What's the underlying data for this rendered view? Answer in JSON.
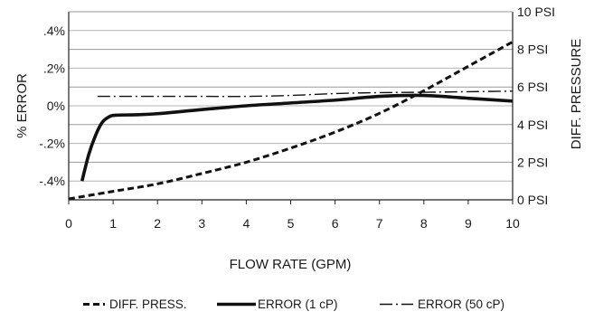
{
  "chart_data": {
    "type": "line",
    "xlabel": "FLOW RATE (GPM)",
    "ylabel_left": "% ERROR",
    "ylabel_right": "DIFF. PRESSURE",
    "xlim": [
      0,
      10
    ],
    "ylim_left": [
      -0.5,
      0.5
    ],
    "ylim_right": [
      0,
      10
    ],
    "x_ticks": [
      "0",
      "1",
      "2",
      "3",
      "4",
      "5",
      "6",
      "7",
      "8",
      "9",
      "10"
    ],
    "y_ticks_left": [
      {
        "value": 0.4,
        "label": ".4%"
      },
      {
        "value": 0.2,
        "label": ".2%"
      },
      {
        "value": 0.0,
        "label": "0%"
      },
      {
        "value": -0.2,
        "label": "-.2%"
      },
      {
        "value": -0.4,
        "label": "-.4%"
      }
    ],
    "y_ticks_right": [
      {
        "value": 10,
        "label": "10 PSI"
      },
      {
        "value": 8,
        "label": "8 PSI"
      },
      {
        "value": 6,
        "label": "6 PSI"
      },
      {
        "value": 4,
        "label": "4 PSI"
      },
      {
        "value": 2,
        "label": "2 PSI"
      },
      {
        "value": 0,
        "label": "0 PSI"
      }
    ],
    "grid": "horizontal",
    "legend_position": "bottom",
    "series": [
      {
        "name": "DIFF. PRESS.",
        "axis": "right",
        "style": "dashed",
        "color": "#111111",
        "x": [
          0,
          1,
          2,
          3,
          4,
          5,
          6,
          7,
          8,
          9,
          10
        ],
        "y": [
          0.05,
          0.45,
          0.85,
          1.4,
          2.0,
          2.75,
          3.6,
          4.6,
          5.8,
          7.1,
          8.4
        ]
      },
      {
        "name": "ERROR (1 cP)",
        "axis": "left",
        "style": "thick",
        "color": "#111111",
        "x": [
          0.3,
          0.45,
          0.6,
          0.75,
          0.9,
          1.05,
          1.5,
          2,
          3,
          4,
          5,
          6,
          7,
          8,
          9,
          10
        ],
        "y": [
          -0.4,
          -0.26,
          -0.16,
          -0.09,
          -0.06,
          -0.05,
          -0.048,
          -0.042,
          -0.02,
          0.0,
          0.015,
          0.03,
          0.05,
          0.055,
          0.04,
          0.025
        ]
      },
      {
        "name": "ERROR (50 cP)",
        "axis": "left",
        "style": "dash-dot",
        "color": "#111111",
        "x": [
          0.65,
          1,
          2,
          3,
          4,
          5,
          6,
          7,
          8,
          9,
          10
        ],
        "y": [
          0.05,
          0.05,
          0.05,
          0.05,
          0.05,
          0.055,
          0.065,
          0.07,
          0.072,
          0.075,
          0.078
        ]
      }
    ]
  }
}
